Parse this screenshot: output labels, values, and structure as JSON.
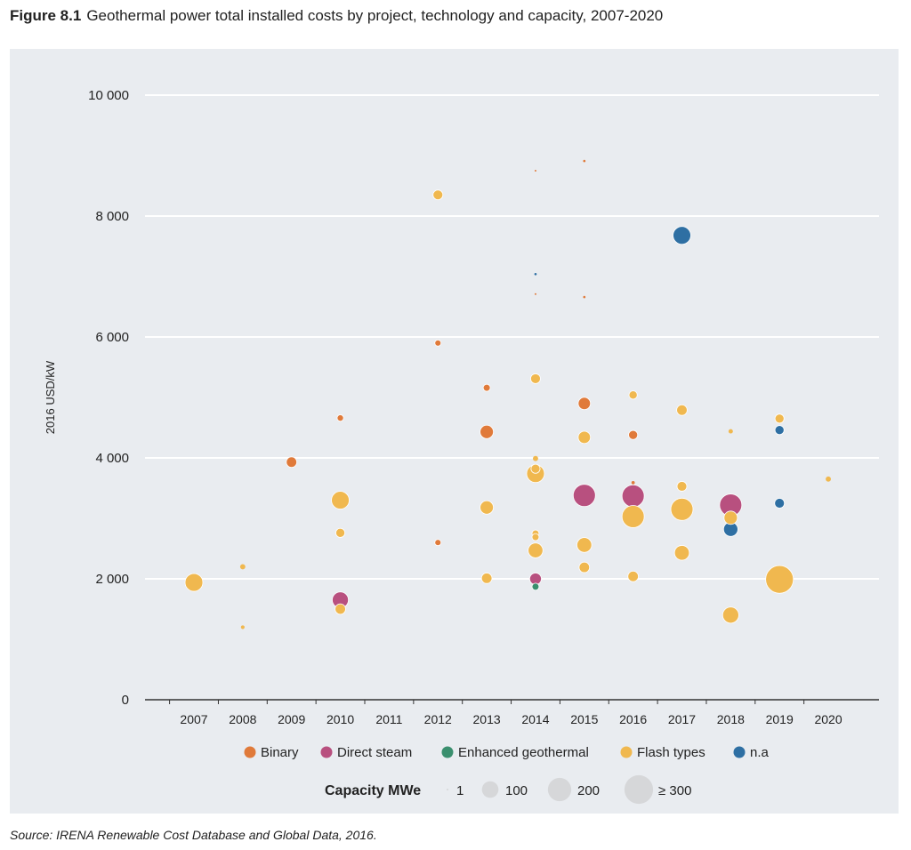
{
  "figure_label": "Figure 8.1",
  "title": "Geothermal power total installed costs by project, technology and capacity, 2007-2020",
  "source": "Source: IRENA Renewable Cost Database and Global Data, 2016.",
  "chart_data": {
    "type": "scatter",
    "title": "Geothermal power total installed costs by project, technology and capacity, 2007-2020",
    "xlabel": "",
    "ylabel": "2016 USD/kW",
    "ylim": [
      0,
      10000
    ],
    "yticks": [
      0,
      2000,
      4000,
      6000,
      8000,
      10000
    ],
    "ytick_labels": [
      "0",
      "2 000",
      "4 000",
      "6 000",
      "8 000",
      "10 000"
    ],
    "categories": [
      "2007",
      "2008",
      "2009",
      "2010",
      "2011",
      "2012",
      "2013",
      "2014",
      "2015",
      "2016",
      "2017",
      "2018",
      "2019",
      "2020"
    ],
    "grid": true,
    "legend_title_size": "Capacity MWe",
    "size_legend": [
      {
        "label": "1",
        "value": 1
      },
      {
        "label": "100",
        "value": 100
      },
      {
        "label": "200",
        "value": 200
      },
      {
        "label": "≥ 300",
        "value": 300
      }
    ],
    "series_colors": {
      "Binary": "#e07a3a",
      "Direct steam": "#b8507f",
      "Enhanced geothermal": "#3a8f6e",
      "Flash types": "#f0b84f",
      "n.a": "#2e6fa3"
    },
    "legend": [
      "Binary",
      "Direct steam",
      "Enhanced geothermal",
      "Flash types",
      "n.a"
    ],
    "legend_position": "bottom",
    "points": [
      {
        "year": "2007",
        "tech": "Flash types",
        "cost": 1940,
        "capacity": 115
      },
      {
        "year": "2008",
        "tech": "Flash types",
        "cost": 2200,
        "capacity": 10
      },
      {
        "year": "2008",
        "tech": "Flash types",
        "cost": 1200,
        "capacity": 5
      },
      {
        "year": "2009",
        "tech": "Binary",
        "cost": 3930,
        "capacity": 40
      },
      {
        "year": "2010",
        "tech": "Binary",
        "cost": 4660,
        "capacity": 15
      },
      {
        "year": "2010",
        "tech": "Flash types",
        "cost": 3300,
        "capacity": 115
      },
      {
        "year": "2010",
        "tech": "Flash types",
        "cost": 2760,
        "capacity": 30
      },
      {
        "year": "2010",
        "tech": "Flash types",
        "cost": 1500,
        "capacity": 40
      },
      {
        "year": "2010",
        "tech": "Direct steam",
        "cost": 1650,
        "capacity": 95
      },
      {
        "year": "2012",
        "tech": "Flash types",
        "cost": 8350,
        "capacity": 35
      },
      {
        "year": "2012",
        "tech": "Binary",
        "cost": 5900,
        "capacity": 14
      },
      {
        "year": "2012",
        "tech": "Binary",
        "cost": 2600,
        "capacity": 14
      },
      {
        "year": "2013",
        "tech": "Binary",
        "cost": 5160,
        "capacity": 18
      },
      {
        "year": "2013",
        "tech": "Binary",
        "cost": 4430,
        "capacity": 65
      },
      {
        "year": "2013",
        "tech": "Flash types",
        "cost": 3180,
        "capacity": 65
      },
      {
        "year": "2013",
        "tech": "Flash types",
        "cost": 2010,
        "capacity": 40
      },
      {
        "year": "2014",
        "tech": "Binary",
        "cost": 8750,
        "capacity": 1
      },
      {
        "year": "2014",
        "tech": "n.a",
        "cost": 7040,
        "capacity": 2
      },
      {
        "year": "2014",
        "tech": "Binary",
        "cost": 6710,
        "capacity": 1
      },
      {
        "year": "2014",
        "tech": "Flash types",
        "cost": 5310,
        "capacity": 35
      },
      {
        "year": "2014",
        "tech": "Flash types",
        "cost": 3990,
        "capacity": 10
      },
      {
        "year": "2014",
        "tech": "Flash types",
        "cost": 3820,
        "capacity": 30
      },
      {
        "year": "2014",
        "tech": "Flash types",
        "cost": 3740,
        "capacity": 115
      },
      {
        "year": "2014",
        "tech": "Flash types",
        "cost": 2750,
        "capacity": 18
      },
      {
        "year": "2014",
        "tech": "Flash types",
        "cost": 2690,
        "capacity": 18
      },
      {
        "year": "2014",
        "tech": "Flash types",
        "cost": 2470,
        "capacity": 80
      },
      {
        "year": "2014",
        "tech": "Direct steam",
        "cost": 2000,
        "capacity": 50
      },
      {
        "year": "2014",
        "tech": "Enhanced geothermal",
        "cost": 1870,
        "capacity": 18
      },
      {
        "year": "2015",
        "tech": "Binary",
        "cost": 8910,
        "capacity": 2
      },
      {
        "year": "2015",
        "tech": "Binary",
        "cost": 6660,
        "capacity": 2
      },
      {
        "year": "2015",
        "tech": "Binary",
        "cost": 4900,
        "capacity": 55
      },
      {
        "year": "2015",
        "tech": "Flash types",
        "cost": 4340,
        "capacity": 55
      },
      {
        "year": "2015",
        "tech": "Direct steam",
        "cost": 3380,
        "capacity": 180
      },
      {
        "year": "2015",
        "tech": "Flash types",
        "cost": 2560,
        "capacity": 80
      },
      {
        "year": "2015",
        "tech": "Flash types",
        "cost": 2190,
        "capacity": 40
      },
      {
        "year": "2016",
        "tech": "Flash types",
        "cost": 5040,
        "capacity": 25
      },
      {
        "year": "2016",
        "tech": "Binary",
        "cost": 4380,
        "capacity": 30
      },
      {
        "year": "2016",
        "tech": "Binary",
        "cost": 3590,
        "capacity": 4
      },
      {
        "year": "2016",
        "tech": "Direct steam",
        "cost": 3370,
        "capacity": 180
      },
      {
        "year": "2016",
        "tech": "Flash types",
        "cost": 3030,
        "capacity": 180
      },
      {
        "year": "2016",
        "tech": "Flash types",
        "cost": 2040,
        "capacity": 40
      },
      {
        "year": "2017",
        "tech": "n.a",
        "cost": 7680,
        "capacity": 115
      },
      {
        "year": "2017",
        "tech": "Flash types",
        "cost": 4790,
        "capacity": 40
      },
      {
        "year": "2017",
        "tech": "Flash types",
        "cost": 3530,
        "capacity": 35
      },
      {
        "year": "2017",
        "tech": "Flash types",
        "cost": 3150,
        "capacity": 180
      },
      {
        "year": "2017",
        "tech": "Flash types",
        "cost": 2430,
        "capacity": 80
      },
      {
        "year": "2018",
        "tech": "Flash types",
        "cost": 4440,
        "capacity": 7
      },
      {
        "year": "2018",
        "tech": "Direct steam",
        "cost": 3220,
        "capacity": 180
      },
      {
        "year": "2018",
        "tech": "Flash types",
        "cost": 3010,
        "capacity": 65
      },
      {
        "year": "2018",
        "tech": "n.a",
        "cost": 2820,
        "capacity": 75
      },
      {
        "year": "2018",
        "tech": "Flash types",
        "cost": 1400,
        "capacity": 95
      },
      {
        "year": "2019",
        "tech": "Flash types",
        "cost": 4650,
        "capacity": 30
      },
      {
        "year": "2019",
        "tech": "n.a",
        "cost": 4460,
        "capacity": 30
      },
      {
        "year": "2019",
        "tech": "n.a",
        "cost": 3250,
        "capacity": 35
      },
      {
        "year": "2019",
        "tech": "Flash types",
        "cost": 1990,
        "capacity": 280
      },
      {
        "year": "2020",
        "tech": "Flash types",
        "cost": 3650,
        "capacity": 10
      }
    ]
  }
}
